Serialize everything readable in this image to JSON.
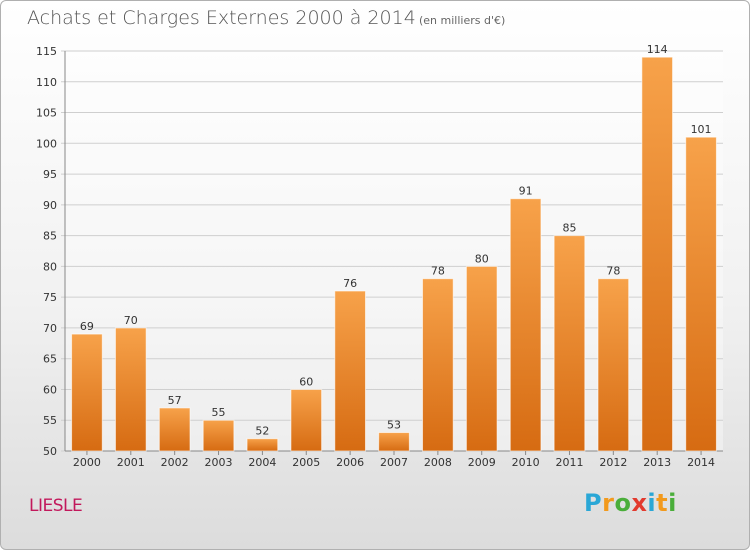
{
  "header": {
    "title": "Achats et Charges Externes 2000 à 2014",
    "subtitle": "(en milliers d'€)"
  },
  "footer": {
    "town": "LIESLE",
    "brand_letters": [
      "P",
      "r",
      "o",
      "x",
      "i",
      "t",
      "i"
    ],
    "brand_colors": [
      "#2aa7d6",
      "#f29a1d",
      "#4aae3a",
      "#e23a2e",
      "#2aa7d6",
      "#f29a1d",
      "#4aae3a"
    ]
  },
  "colors": {
    "bar_top": "#f7a24a",
    "bar_bottom": "#d66b12",
    "grid": "#cfcfcf",
    "axis": "#888888"
  },
  "chart_data": {
    "type": "bar",
    "title": "Achats et Charges Externes 2000 à 2014",
    "subtitle": "(en milliers d'€)",
    "xlabel": "",
    "ylabel": "",
    "categories": [
      "2000",
      "2001",
      "2002",
      "2003",
      "2004",
      "2005",
      "2006",
      "2007",
      "2008",
      "2009",
      "2010",
      "2011",
      "2012",
      "2013",
      "2014"
    ],
    "values": [
      69,
      70,
      57,
      55,
      52,
      60,
      76,
      53,
      78,
      80,
      91,
      85,
      78,
      114,
      101
    ],
    "ylim": [
      50,
      115
    ],
    "yticks": [
      50,
      55,
      60,
      65,
      70,
      75,
      80,
      85,
      90,
      95,
      100,
      105,
      110,
      115
    ],
    "grid": true,
    "legend": "none"
  }
}
